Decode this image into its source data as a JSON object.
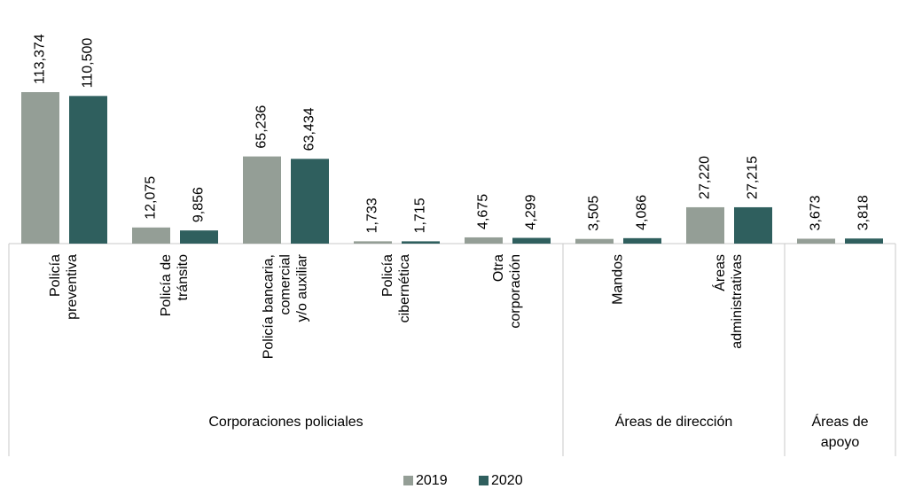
{
  "chart_data": {
    "type": "bar",
    "categories": [
      "Policía\npreventiva",
      "Policía de\ntránsito",
      "Policía bancaria,\ncomercial\ny/o auxiliar",
      "Policía\ncibernética",
      "Otra\ncorporación",
      "Mandos",
      "Áreas\nadministrativas",
      ""
    ],
    "groups": [
      {
        "name": "Corporaciones policiales",
        "size": 5
      },
      {
        "name": "Áreas de dirección",
        "size": 2
      },
      {
        "name": "Áreas de\napoyo",
        "size": 1
      }
    ],
    "series": [
      {
        "name": "2019",
        "color": "#949e96",
        "values": [
          113374,
          12075,
          65236,
          1733,
          4675,
          3505,
          27220,
          3673
        ],
        "value_labels": [
          "113,374",
          "12,075",
          "65,236",
          "1,733",
          "4,675",
          "3,505",
          "27,220",
          "3,673"
        ]
      },
      {
        "name": "2020",
        "color": "#2f5f5e",
        "values": [
          110500,
          9856,
          63434,
          1715,
          4299,
          4086,
          27215,
          3818
        ],
        "value_labels": [
          "110,500",
          "9,856",
          "63,434",
          "1,715",
          "4,299",
          "4,086",
          "27,215",
          "3,818"
        ]
      }
    ]
  }
}
